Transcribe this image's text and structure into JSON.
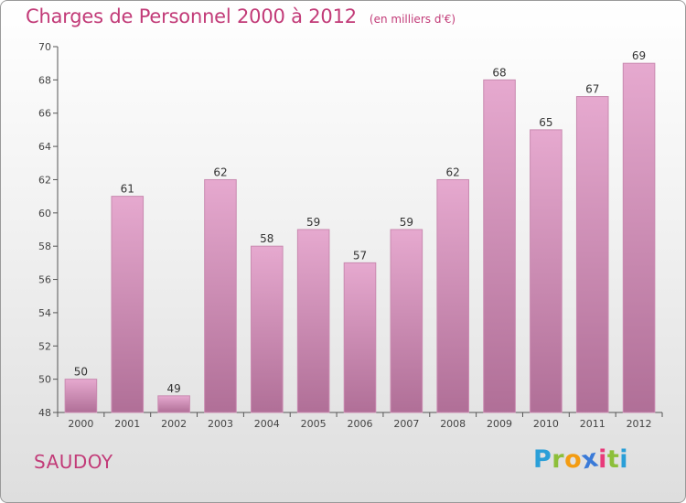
{
  "title": "Charges de Personnel 2000 à 2012",
  "subtitle": "(en milliers d'€)",
  "place": "SAUDOY",
  "brand": {
    "letters": [
      "P",
      "r",
      "o",
      "x",
      "i",
      "t",
      "i"
    ],
    "colors": [
      "#2a9fd8",
      "#8dbf3a",
      "#f39c12",
      "#3a7ad8",
      "#e83a7a",
      "#8dbf3a",
      "#2a9fd8"
    ]
  },
  "colors": {
    "bar_top": "#e6a9cf",
    "bar_bottom": "#b06f97",
    "accent": "#c23b78"
  },
  "chart_data": {
    "type": "bar",
    "categories": [
      "2000",
      "2001",
      "2002",
      "2003",
      "2004",
      "2005",
      "2006",
      "2007",
      "2008",
      "2009",
      "2010",
      "2011",
      "2012"
    ],
    "values": [
      50,
      61,
      49,
      62,
      58,
      59,
      57,
      59,
      62,
      68,
      65,
      67,
      69
    ],
    "title": "Charges de Personnel 2000 à 2012",
    "subtitle": "(en milliers d'€)",
    "ylim": [
      48,
      70
    ],
    "yticks": [
      48,
      50,
      52,
      54,
      56,
      58,
      60,
      62,
      64,
      66,
      68,
      70
    ],
    "grid": false,
    "legend": "none"
  }
}
